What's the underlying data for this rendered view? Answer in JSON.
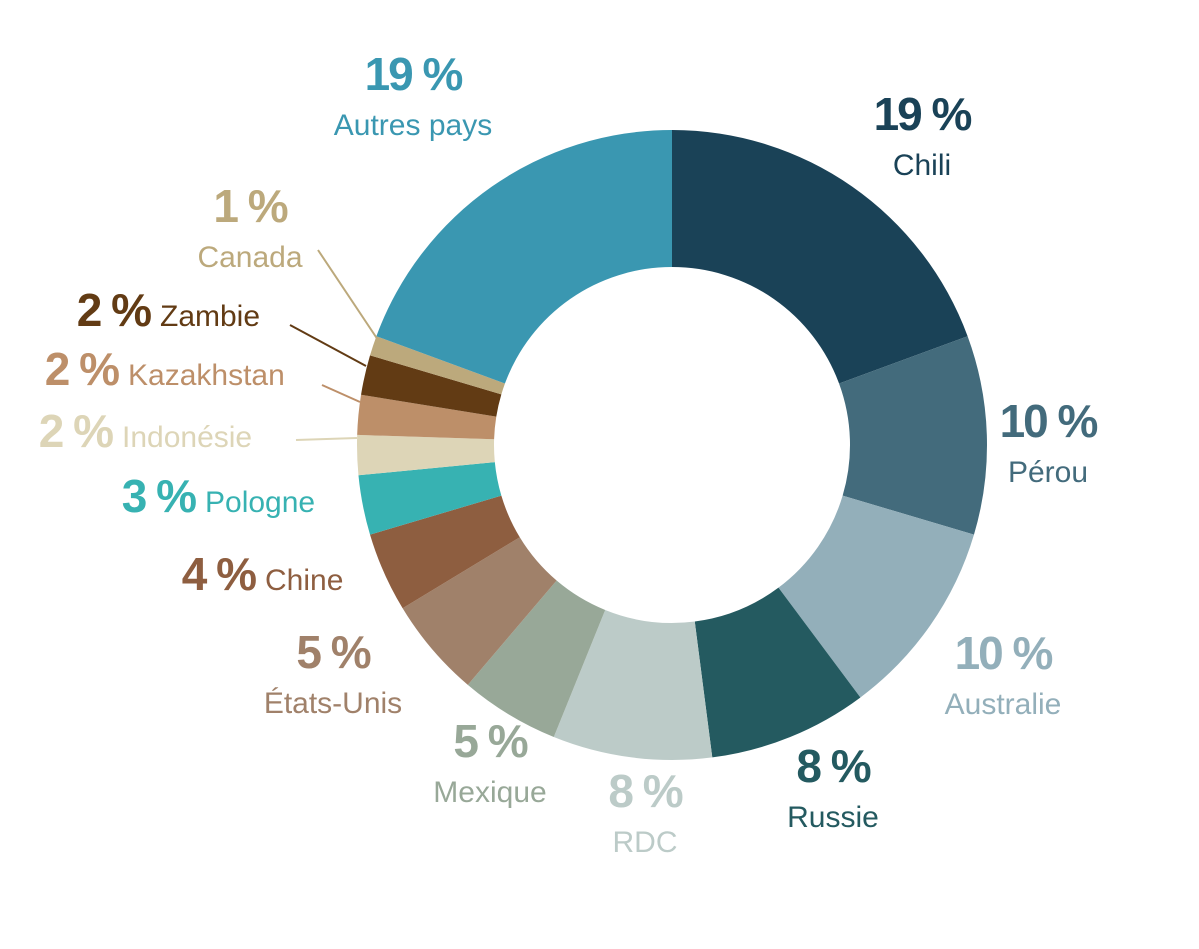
{
  "chart_data": {
    "type": "donut",
    "categories": [
      "Chili",
      "Pérou",
      "Australie",
      "Russie",
      "RDC",
      "Mexique",
      "États-Unis",
      "Chine",
      "Pologne",
      "Indonésie",
      "Kazakhstan",
      "Zambie",
      "Canada",
      "Autres pays"
    ],
    "values": [
      19,
      10,
      10,
      8,
      8,
      5,
      5,
      4,
      3,
      2,
      2,
      2,
      1,
      19
    ],
    "value_labels": [
      "19 %",
      "10 %",
      "10 %",
      "8 %",
      "8 %",
      "5 %",
      "5 %",
      "4 %",
      "3 %",
      "2 %",
      "2 %",
      "2 %",
      "1 %",
      "19 %"
    ],
    "colors": [
      "#1a4257",
      "#436b7c",
      "#93afba",
      "#245a60",
      "#bccbc8",
      "#98a898",
      "#a0816a",
      "#8e5e40",
      "#37b2b2",
      "#ddd5b7",
      "#bd8f69",
      "#623b14",
      "#bca97c",
      "#3a97b1"
    ]
  }
}
